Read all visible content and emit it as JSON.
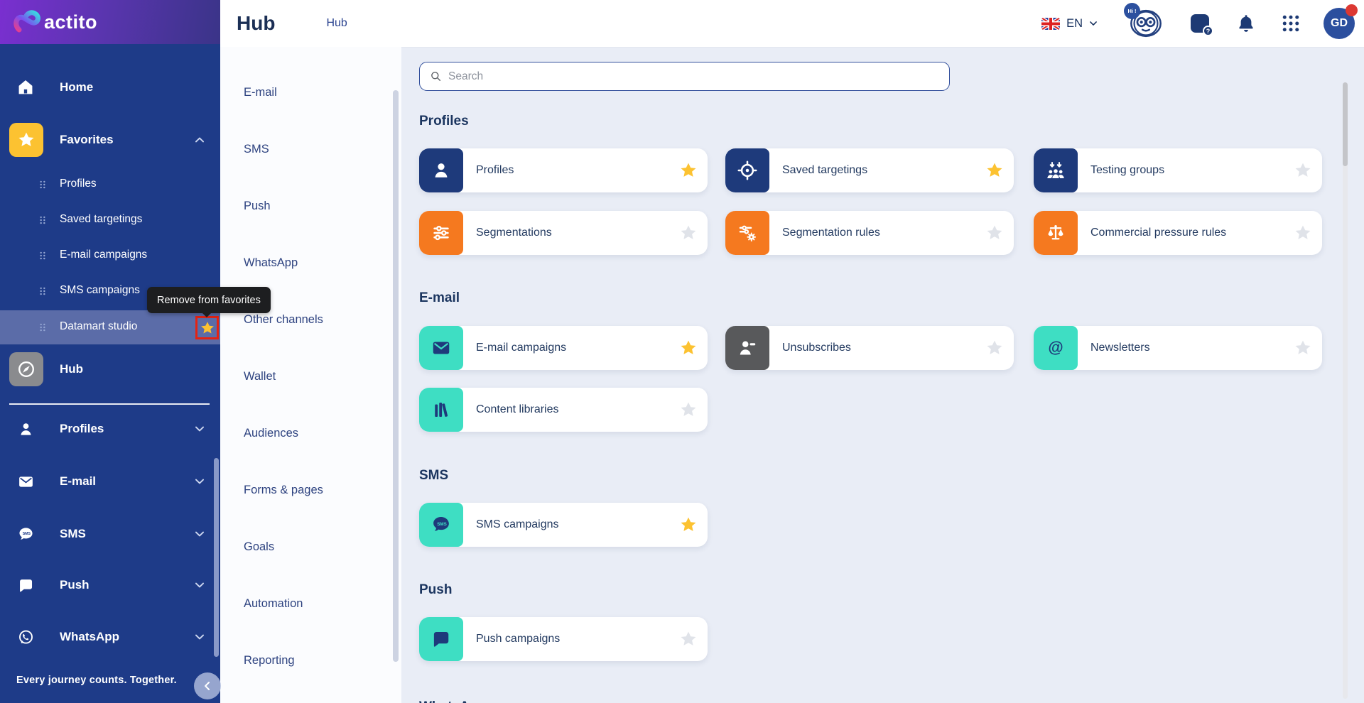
{
  "app": {
    "name": "actito",
    "tagline": "Every journey counts. Together."
  },
  "header": {
    "title": "Hub",
    "breadcrumb": [
      "Hub"
    ],
    "language": "EN",
    "mascot_badge": "Hi !",
    "avatar_initials": "GD",
    "icons": [
      "uk-flag-icon",
      "chevron-down-icon",
      "mascot-icon",
      "help-chat-icon",
      "bell-icon",
      "app-grid-icon",
      "notification-dot"
    ]
  },
  "sidebar": {
    "home": {
      "label": "Home",
      "icon": "home-icon"
    },
    "favorites": {
      "label": "Favorites",
      "icon": "star-icon",
      "expanded": true,
      "children": [
        {
          "label": "Profiles",
          "active": false
        },
        {
          "label": "Saved targetings",
          "active": false
        },
        {
          "label": "E-mail campaigns",
          "active": false
        },
        {
          "label": "SMS campaigns",
          "active": false
        },
        {
          "label": "Datamart studio",
          "active": true
        }
      ],
      "tooltip": "Remove from favorites"
    },
    "hub": {
      "label": "Hub",
      "icon": "compass-icon"
    },
    "channels": [
      {
        "label": "Profiles",
        "icon": "person-icon"
      },
      {
        "label": "E-mail",
        "icon": "envelope-icon"
      },
      {
        "label": "SMS",
        "icon": "sms-bubble-icon"
      },
      {
        "label": "Push",
        "icon": "push-bubble-icon"
      },
      {
        "label": "WhatsApp",
        "icon": "whatsapp-icon"
      }
    ],
    "tagline": "Every journey counts. Together."
  },
  "secondary_menu": {
    "items": [
      "E-mail",
      "SMS",
      "Push",
      "WhatsApp",
      "Other channels",
      "Wallet",
      "Audiences",
      "Forms & pages",
      "Goals",
      "Automation",
      "Reporting"
    ]
  },
  "main": {
    "search": {
      "placeholder": "Search"
    },
    "sections": [
      {
        "title": "Profiles",
        "cards": [
          {
            "label": "Profiles",
            "icon": "person-icon",
            "color": "navy",
            "favorite": true
          },
          {
            "label": "Saved targetings",
            "icon": "target-icon",
            "color": "navy",
            "favorite": true
          },
          {
            "label": "Testing groups",
            "icon": "testing-groups-icon",
            "color": "navy",
            "favorite": false
          },
          {
            "label": "Segmentations",
            "icon": "segmentation-icon",
            "color": "orange",
            "favorite": false
          },
          {
            "label": "Segmentation rules",
            "icon": "segmentation-rules-icon",
            "color": "orange",
            "favorite": false
          },
          {
            "label": "Commercial pressure rules",
            "icon": "scales-icon",
            "color": "orange",
            "favorite": false
          }
        ]
      },
      {
        "title": "E-mail",
        "cards": [
          {
            "label": "E-mail campaigns",
            "icon": "envelope-icon",
            "color": "teal",
            "favorite": true
          },
          {
            "label": "Unsubscribes",
            "icon": "person-minus-icon",
            "color": "gray",
            "favorite": false
          },
          {
            "label": "Newsletters",
            "icon": "at-sign-icon",
            "color": "teal",
            "favorite": false
          },
          {
            "label": "Content libraries",
            "icon": "library-icon",
            "color": "teal",
            "favorite": false
          }
        ]
      },
      {
        "title": "SMS",
        "cards": [
          {
            "label": "SMS campaigns",
            "icon": "sms-bubble-icon",
            "color": "teal",
            "favorite": true
          }
        ]
      },
      {
        "title": "Push",
        "cards": [
          {
            "label": "Push campaigns",
            "icon": "push-bubble-icon",
            "color": "teal",
            "favorite": false
          }
        ]
      },
      {
        "title": "WhatsApp",
        "cards": []
      }
    ]
  },
  "colors": {
    "sidebar_bg": "#1e3b88",
    "sidebar_active_row": "#5b6ca8",
    "favorites_yellow": "#fcc231",
    "card_navy": "#1e3a7b",
    "card_orange": "#f5791f",
    "card_teal": "#3edec3",
    "card_gray": "#58595b",
    "main_bg": "#e9edf6",
    "tooltip_bg": "#1d1e20",
    "focus_red": "#e42313",
    "star_inactive": "#e0e3e9",
    "heading_navy": "#1b355f"
  }
}
